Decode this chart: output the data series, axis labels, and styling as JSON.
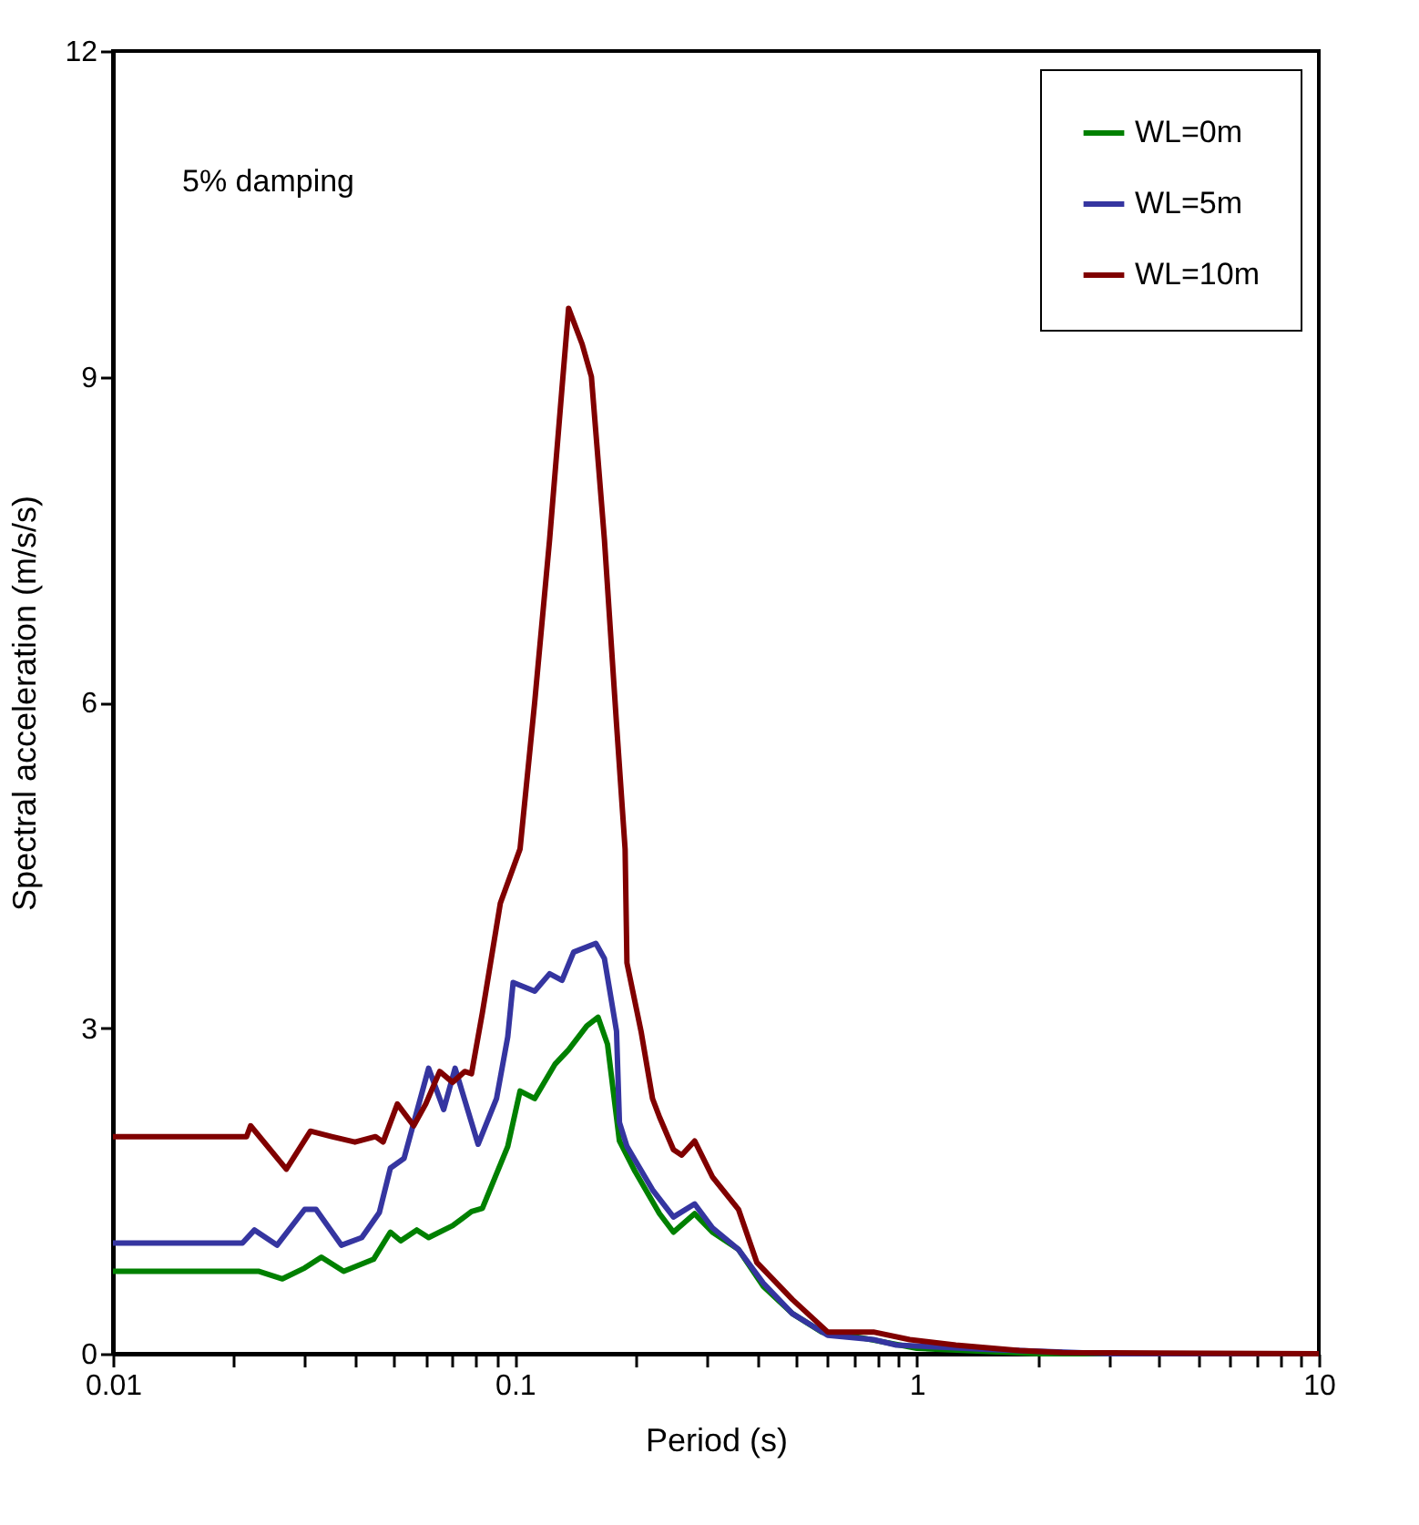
{
  "chart_data": {
    "type": "line",
    "xlabel": "Period (s)",
    "ylabel": "Spectral acceleration (m/s/s)",
    "annotations": [
      "5% damping"
    ],
    "log": "x",
    "grid": false,
    "legend": "top right",
    "marker": "none",
    "line_style": "solid",
    "xlim": [
      0.01,
      10
    ],
    "ylim": [
      0,
      12
    ],
    "xticks": [
      0.01,
      {
        "value": 0.02,
        "label": null
      },
      {
        "value": 0.03,
        "label": null
      },
      {
        "value": 0.04,
        "label": null
      },
      {
        "value": 0.05,
        "label": null
      },
      {
        "value": 0.06,
        "label": null
      },
      {
        "value": 0.07,
        "label": null
      },
      {
        "value": 0.08,
        "label": null
      },
      {
        "value": 0.09,
        "label": null
      },
      0.1,
      {
        "value": 0.2,
        "label": null
      },
      {
        "value": 0.3,
        "label": null
      },
      {
        "value": 0.4,
        "label": null
      },
      {
        "value": 0.5,
        "label": null
      },
      {
        "value": 0.6,
        "label": null
      },
      {
        "value": 0.7,
        "label": null
      },
      {
        "value": 0.8,
        "label": null
      },
      {
        "value": 0.9,
        "label": null
      },
      1,
      {
        "value": 2,
        "label": null
      },
      {
        "value": 3,
        "label": null
      },
      {
        "value": 4,
        "label": null
      },
      {
        "value": 5,
        "label": null
      },
      {
        "value": 6,
        "label": null
      },
      {
        "value": 7,
        "label": null
      },
      {
        "value": 8,
        "label": null
      },
      {
        "value": 9,
        "label": null
      },
      10
    ],
    "yticks": [
      0,
      3,
      6,
      9,
      12
    ],
    "series": [
      {
        "name": "WL=0m",
        "color": "#008000",
        "x": [
          0.01,
          0.023,
          0.0264,
          0.03,
          0.033,
          0.0375,
          0.0445,
          0.049,
          0.052,
          0.057,
          0.061,
          0.07,
          0.078,
          0.083,
          0.096,
          0.103,
          0.112,
          0.126,
          0.136,
          0.151,
          0.161,
          0.17,
          0.182,
          0.199,
          0.229,
          0.248,
          0.28,
          0.31,
          0.36,
          0.415,
          0.49,
          0.58,
          0.72,
          1.0,
          2.0,
          10
        ],
        "values": [
          0.76,
          0.76,
          0.69,
          0.79,
          0.89,
          0.76,
          0.87,
          1.12,
          1.04,
          1.14,
          1.07,
          1.18,
          1.31,
          1.34,
          1.91,
          2.42,
          2.35,
          2.67,
          2.8,
          3.02,
          3.1,
          2.85,
          1.96,
          1.68,
          1.29,
          1.12,
          1.29,
          1.12,
          0.96,
          0.62,
          0.37,
          0.2,
          0.15,
          0.05,
          0,
          0
        ]
      },
      {
        "name": "WL=5m",
        "color": "#3535a0",
        "x": [
          0.01,
          0.021,
          0.0225,
          0.0256,
          0.03,
          0.032,
          0.037,
          0.0416,
          0.046,
          0.049,
          0.053,
          0.061,
          0.0665,
          0.071,
          0.081,
          0.09,
          0.096,
          0.099,
          0.112,
          0.122,
          0.131,
          0.14,
          0.159,
          0.167,
          0.179,
          0.182,
          0.19,
          0.22,
          0.248,
          0.28,
          0.31,
          0.36,
          0.415,
          0.49,
          0.6,
          0.78,
          0.89,
          1.5,
          3.0,
          10
        ],
        "values": [
          1.02,
          1.02,
          1.14,
          1.0,
          1.33,
          1.33,
          1.0,
          1.07,
          1.3,
          1.71,
          1.8,
          2.63,
          2.25,
          2.63,
          1.93,
          2.35,
          2.92,
          3.42,
          3.34,
          3.5,
          3.44,
          3.7,
          3.78,
          3.64,
          2.97,
          2.13,
          1.91,
          1.51,
          1.26,
          1.38,
          1.16,
          0.96,
          0.65,
          0.37,
          0.17,
          0.13,
          0.08,
          0.04,
          0,
          0
        ]
      },
      {
        "name": "WL=10m",
        "color": "#800000",
        "x": [
          0.01,
          0.0215,
          0.022,
          0.027,
          0.031,
          0.035,
          0.04,
          0.045,
          0.047,
          0.051,
          0.056,
          0.06,
          0.065,
          0.07,
          0.075,
          0.078,
          0.083,
          0.092,
          0.103,
          0.112,
          0.122,
          0.131,
          0.136,
          0.147,
          0.155,
          0.167,
          0.179,
          0.188,
          0.19,
          0.206,
          0.22,
          0.229,
          0.248,
          0.26,
          0.28,
          0.31,
          0.36,
          0.4,
          0.49,
          0.6,
          0.78,
          0.96,
          1.25,
          1.8,
          2.3,
          10
        ],
        "values": [
          2.0,
          2.0,
          2.1,
          1.7,
          2.05,
          2.0,
          1.95,
          2.0,
          1.95,
          2.3,
          2.1,
          2.3,
          2.6,
          2.5,
          2.6,
          2.58,
          3.14,
          4.15,
          4.65,
          6.0,
          7.5,
          8.9,
          9.63,
          9.3,
          9.0,
          7.5,
          5.8,
          4.65,
          3.6,
          2.97,
          2.35,
          2.18,
          1.88,
          1.83,
          1.96,
          1.63,
          1.33,
          0.84,
          0.5,
          0.2,
          0.2,
          0.13,
          0.08,
          0.03,
          0.01,
          0
        ]
      }
    ]
  }
}
